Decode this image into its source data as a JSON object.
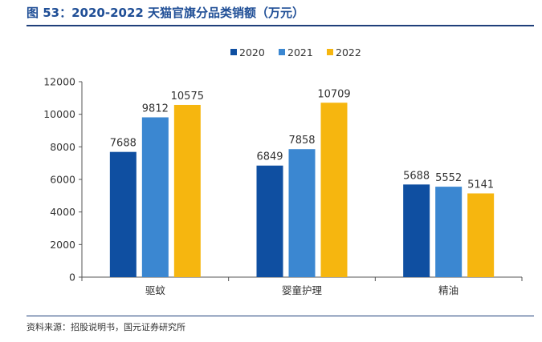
{
  "figure": {
    "title": "图 53：2020-2022 天猫官旗分品类销额（万元）",
    "source": "资料来源：招股说明书，国元证券研究所"
  },
  "chart_data": {
    "type": "bar",
    "categories": [
      "驱蚊",
      "婴童护理",
      "精油"
    ],
    "series": [
      {
        "name": "2020",
        "values": [
          7688,
          6849,
          5688
        ],
        "color": "#0f4fa1"
      },
      {
        "name": "2021",
        "values": [
          9812,
          7858,
          5552
        ],
        "color": "#3b87d1"
      },
      {
        "name": "2022",
        "values": [
          10575,
          10709,
          5141
        ],
        "color": "#f6b60f"
      }
    ],
    "ylim": [
      0,
      12000
    ],
    "yticks": [
      0,
      2000,
      4000,
      6000,
      8000,
      10000,
      12000
    ],
    "legend_position": "top-center",
    "grid": false
  }
}
